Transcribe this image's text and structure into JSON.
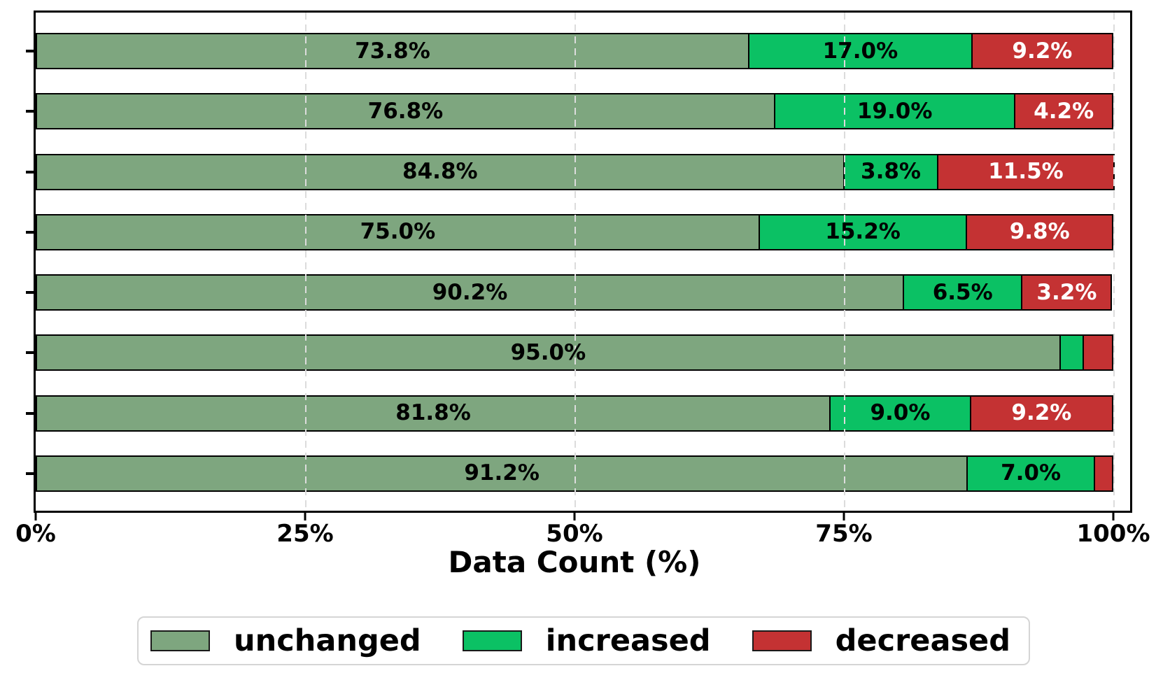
{
  "chart_data": {
    "type": "bar",
    "orientation": "horizontal",
    "stacked": true,
    "title": "",
    "xlabel": "Data Count (%)",
    "ylabel": "",
    "xlim": [
      0,
      102
    ],
    "grid": {
      "axis": "x",
      "style": "dashed",
      "color": "#dcdcdc",
      "on": true
    },
    "x_ticks": [
      {
        "value": 0,
        "label": "0%"
      },
      {
        "value": 25,
        "label": "25%"
      },
      {
        "value": 50,
        "label": "50%"
      },
      {
        "value": 75,
        "label": "75%"
      },
      {
        "value": 100,
        "label": "100%"
      }
    ],
    "categories": [
      "",
      "",
      "",
      "",
      "",
      "",
      "",
      ""
    ],
    "series": [
      {
        "name": "unchanged",
        "color": "#7EA67F",
        "values": [
          73.8,
          76.8,
          84.8,
          75.0,
          90.2,
          95.0,
          81.8,
          91.2
        ]
      },
      {
        "name": "increased",
        "color": "#0BC164",
        "values": [
          17.0,
          19.0,
          3.8,
          15.2,
          6.5,
          2.2,
          9.0,
          7.0
        ]
      },
      {
        "name": "decreased",
        "color": "#C43233",
        "values": [
          9.2,
          4.2,
          11.5,
          9.8,
          3.2,
          2.8,
          9.2,
          1.8
        ]
      }
    ],
    "bar_labels": [
      [
        "73.8%",
        "17.0%",
        "9.2%"
      ],
      [
        "76.8%",
        "19.0%",
        "4.2%"
      ],
      [
        "84.8%",
        "3.8%",
        "11.5%"
      ],
      [
        "75.0%",
        "15.2%",
        "9.8%"
      ],
      [
        "90.2%",
        "6.5%",
        "3.2%"
      ],
      [
        "95.0%",
        "",
        ""
      ],
      [
        "81.8%",
        "9.0%",
        "9.2%"
      ],
      [
        "91.2%",
        "7.0%",
        ""
      ]
    ],
    "bar_label_colors": [
      "#000000",
      "#000000",
      "#ffffff"
    ],
    "legend_position": "bottom"
  },
  "legend": {
    "items": [
      {
        "label": "unchanged",
        "color": "#7EA67F"
      },
      {
        "label": "increased",
        "color": "#0BC164"
      },
      {
        "label": "decreased",
        "color": "#C43233"
      }
    ]
  }
}
